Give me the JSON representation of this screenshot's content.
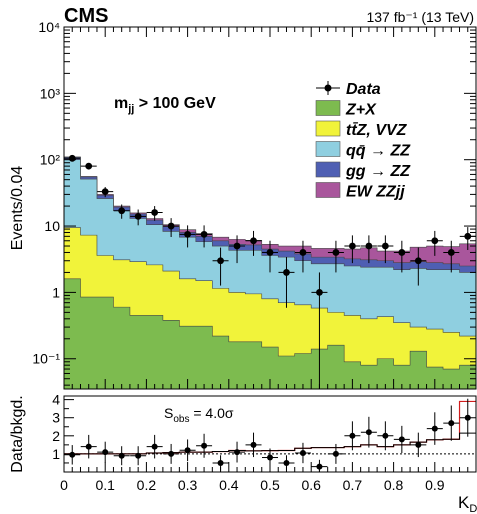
{
  "chart_data": [
    {
      "type": "area",
      "title": "",
      "header_left": "CMS",
      "header_right": "137 fb⁻¹ (13 TeV)",
      "ylabel": "Events/0.04",
      "xlabel": "K_D",
      "yscale": "log",
      "ylim": [
        0.035,
        10000
      ],
      "xlim": [
        0,
        1
      ],
      "y_ticks": [
        "10⁻¹",
        "1",
        "10",
        "10²",
        "10³",
        "10⁴"
      ],
      "cut_label": "m_jj > 100 GeV",
      "legend_position": "top-right",
      "bin_edges": [
        0.0,
        0.04,
        0.08,
        0.12,
        0.16,
        0.2,
        0.24,
        0.28,
        0.32,
        0.36,
        0.4,
        0.44,
        0.48,
        0.52,
        0.56,
        0.6,
        0.64,
        0.68,
        0.72,
        0.76,
        0.8,
        0.84,
        0.88,
        0.92,
        0.96,
        1.0
      ],
      "series": [
        {
          "name": "Z+X",
          "color": "#7dbb4f",
          "values": [
            1.6,
            0.85,
            0.85,
            0.6,
            0.45,
            0.45,
            0.38,
            0.31,
            0.31,
            0.22,
            0.18,
            0.18,
            0.15,
            0.11,
            0.12,
            0.14,
            0.16,
            0.09,
            0.08,
            0.1,
            0.08,
            0.13,
            0.075,
            0.07,
            0.08
          ]
        },
        {
          "name": "tt̄Z, VVZ",
          "color": "#f1f33a",
          "values": [
            9.5,
            7.3,
            3.6,
            3.1,
            2.9,
            2.6,
            2.1,
            1.6,
            1.5,
            1.15,
            1.0,
            0.95,
            0.8,
            0.7,
            0.65,
            0.58,
            0.5,
            0.45,
            0.4,
            0.43,
            0.35,
            0.3,
            0.28,
            0.25,
            0.22
          ]
        },
        {
          "name": "qq̄ → ZZ",
          "color": "#8fcfe0",
          "values": [
            100,
            51,
            26,
            17,
            13,
            10.5,
            8.3,
            6.8,
            5.8,
            5.0,
            4.3,
            4.3,
            3.6,
            3.4,
            3.0,
            2.7,
            2.7,
            2.5,
            2.4,
            2.4,
            2.2,
            2.3,
            2.2,
            2.2,
            2.0
          ]
        },
        {
          "name": "gg → ZZ",
          "color": "#4f5fb3",
          "values": [
            109,
            55,
            29,
            19.3,
            15.2,
            12.3,
            9.8,
            8.0,
            7.0,
            6.0,
            5.3,
            5.2,
            4.5,
            4.2,
            3.8,
            3.4,
            3.4,
            3.2,
            3.1,
            3.0,
            2.8,
            2.9,
            2.8,
            2.7,
            2.5
          ]
        },
        {
          "name": "EW ZZjj",
          "color": "#a9569c",
          "values": [
            110,
            56,
            30,
            20,
            15.8,
            13,
            10.5,
            8.8,
            7.7,
            6.8,
            6.3,
            6.1,
            5.3,
            5.0,
            5.0,
            4.6,
            4.6,
            4.5,
            4.7,
            4.2,
            4.2,
            4.8,
            5.0,
            4.9,
            5.4
          ]
        }
      ],
      "data_series": {
        "name": "Data",
        "x": [
          0.02,
          0.06,
          0.1,
          0.14,
          0.18,
          0.22,
          0.26,
          0.3,
          0.34,
          0.38,
          0.42,
          0.46,
          0.5,
          0.54,
          0.58,
          0.62,
          0.66,
          0.7,
          0.74,
          0.78,
          0.82,
          0.86,
          0.9,
          0.94,
          0.98
        ],
        "y": [
          105,
          80,
          33,
          17,
          14,
          16,
          10,
          7.5,
          7.5,
          3,
          5,
          6,
          4,
          2,
          4,
          1,
          4,
          5,
          5,
          5,
          4,
          3,
          6,
          4,
          7
        ]
      }
    },
    {
      "type": "scatter",
      "ylabel": "Data/bkgd.",
      "xlabel": "K_D",
      "annotation": "S_obs = 4.0σ",
      "ylim": [
        0,
        4.2
      ],
      "xlim": [
        0,
        1
      ],
      "x_tick_labels": [
        "0",
        "0.1",
        "0.2",
        "0.3",
        "0.4",
        "0.5",
        "0.6",
        "0.7",
        "0.8",
        "0.9"
      ],
      "y_tick_labels": [
        "1",
        "2",
        "3",
        "4"
      ],
      "line_values": [
        1.0,
        1.0,
        1.0,
        1.0,
        1.0,
        1.05,
        1.07,
        1.1,
        1.1,
        1.13,
        1.19,
        1.17,
        1.18,
        1.19,
        1.31,
        1.35,
        1.35,
        1.4,
        1.5,
        1.4,
        1.5,
        1.65,
        1.78,
        1.81,
        2.15
      ],
      "line_values_2": [
        1.0,
        1.0,
        1.0,
        1.0,
        1.0,
        1.05,
        1.07,
        1.1,
        1.1,
        1.13,
        1.19,
        1.17,
        1.18,
        1.19,
        1.31,
        1.35,
        1.35,
        1.4,
        1.5,
        1.4,
        1.5,
        1.65,
        1.78,
        1.81,
        3.9
      ],
      "x": [
        0.02,
        0.06,
        0.1,
        0.14,
        0.18,
        0.22,
        0.26,
        0.3,
        0.34,
        0.38,
        0.42,
        0.46,
        0.5,
        0.54,
        0.58,
        0.62,
        0.66,
        0.7,
        0.74,
        0.78,
        0.82,
        0.86,
        0.9,
        0.94,
        0.98
      ],
      "y": [
        0.95,
        1.4,
        1.1,
        0.9,
        0.9,
        1.4,
        1.0,
        1.2,
        1.45,
        0.5,
        1.1,
        1.5,
        0.8,
        0.5,
        1.05,
        0.3,
        1.0,
        2.0,
        2.2,
        2.0,
        1.8,
        1.5,
        2.4,
        2.7,
        3.0
      ]
    }
  ],
  "colors": {
    "ratio_red": "#d11d1d",
    "ratio_black": "#000000"
  }
}
